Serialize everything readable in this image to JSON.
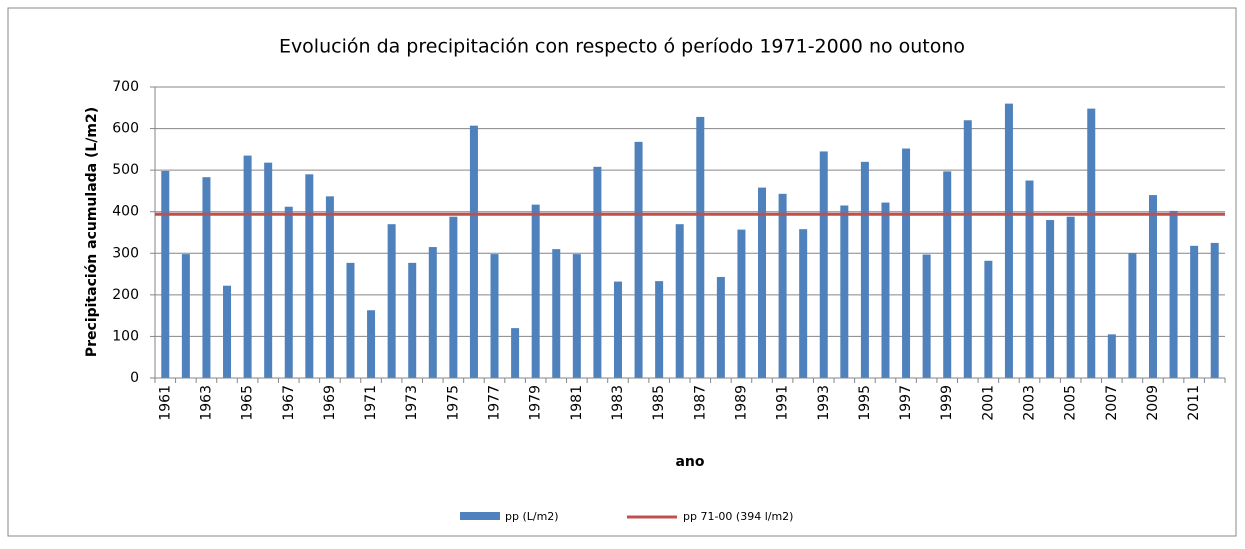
{
  "chart_data": {
    "type": "bar",
    "title": "Evolución da precipitación con respecto ó período 1971-2000  no outono",
    "y_label": "Precipitación acumulada (L/m2)",
    "x_label": "ano",
    "categories": [
      "1961",
      null,
      "1963",
      null,
      "1965",
      null,
      "1967",
      null,
      "1969",
      null,
      "1971",
      null,
      "1973",
      null,
      "1975",
      null,
      "1977",
      null,
      "1979",
      null,
      "1981",
      null,
      "1983",
      null,
      "1985",
      null,
      "1987",
      null,
      "1989",
      null,
      "1991",
      null,
      "1993",
      null,
      "1995",
      null,
      "1997",
      null,
      "1999",
      null,
      "2001",
      null,
      "2003",
      null,
      "2005",
      null,
      "2007",
      null,
      "2009",
      null,
      "2011",
      null
    ],
    "series": [
      {
        "name": "pp (L/m2)",
        "color": "#4f81bd",
        "values": [
          498,
          298,
          483,
          222,
          535,
          518,
          412,
          490,
          437,
          277,
          163,
          370,
          277,
          315,
          388,
          607,
          298,
          120,
          417,
          310,
          298,
          508,
          232,
          568,
          233,
          370,
          628,
          243,
          357,
          458,
          443,
          358,
          545,
          415,
          520,
          422,
          552,
          297,
          497,
          620,
          282,
          660,
          475,
          380,
          388,
          648,
          105,
          300,
          440,
          402,
          318,
          325
        ]
      }
    ],
    "reference_line": {
      "name": "pp 71-00 (394 l/m2)",
      "color": "#c0504d",
      "value": 394
    },
    "ylim": [
      0,
      700
    ],
    "yticks": [
      0,
      100,
      200,
      300,
      400,
      500,
      600,
      700
    ],
    "grid": true
  }
}
